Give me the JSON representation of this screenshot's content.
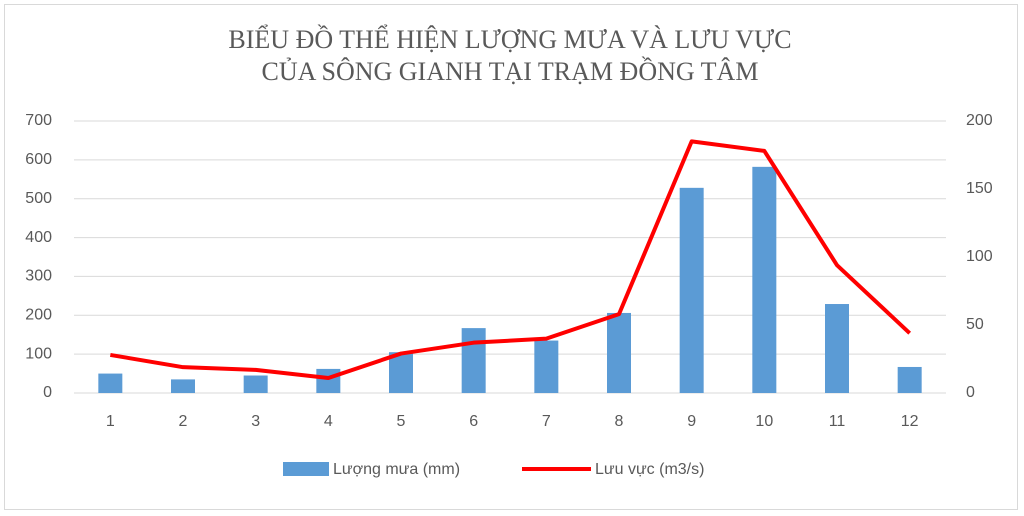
{
  "chart_data": {
    "type": "bar-line",
    "title": [
      "BIỂU ĐỒ THỂ HIỆN LƯỢNG MƯA VÀ LƯU VỰC",
      "CỦA SÔNG GIANH TẠI TRẠM ĐỒNG TÂM"
    ],
    "categories": [
      "1",
      "2",
      "3",
      "4",
      "5",
      "6",
      "7",
      "8",
      "9",
      "10",
      "11",
      "12"
    ],
    "series": [
      {
        "name": "Lượng mưa (mm)",
        "color": "#5b9bd5",
        "type": "bar",
        "values": [
          50,
          35,
          45,
          62,
          105,
          167,
          135,
          206,
          528,
          582,
          229,
          67
        ]
      },
      {
        "name": "Lưu vực (m3/s)",
        "color": "#ff0000",
        "type": "line",
        "axis": "y2",
        "values": [
          28,
          19,
          17,
          11,
          29,
          37,
          40,
          58,
          185,
          178,
          94,
          44
        ]
      }
    ],
    "ylim": [
      0,
      700
    ],
    "yticks": [
      0,
      100,
      200,
      300,
      400,
      500,
      600,
      700
    ],
    "y2lim": [
      0,
      200
    ],
    "y2ticks": [
      0,
      50,
      100,
      150,
      200
    ],
    "grid": true,
    "legend": "bottom"
  }
}
